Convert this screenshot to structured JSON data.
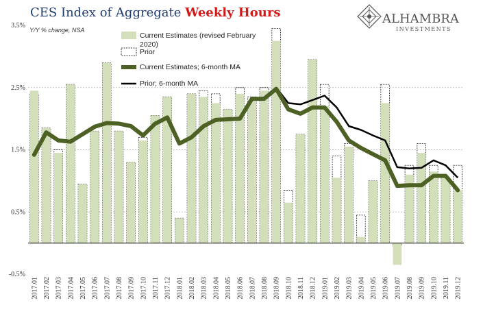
{
  "header": {
    "title_part1": "CES Index of Aggregate ",
    "title_part2": "Weekly Hours"
  },
  "brand": {
    "name": "ALHAMBRA",
    "tagline": "INVESTMENTS",
    "logo_icon": "alhambra-diamond-logo"
  },
  "colors": {
    "current_bar": "#d3dfbb",
    "prior_bar_border": "#333333",
    "ma_current": "#4d6125",
    "ma_prior": "#000000",
    "title_blue": "#1f3a6e",
    "title_red": "#d11a1a"
  },
  "chart_data": {
    "type": "bar",
    "ylabel": "Y/Y % change, NSA",
    "ylim": [
      -0.5,
      3.5
    ],
    "yticks": [
      "3.5%",
      "2.5%",
      "1.5%",
      "0.5%",
      "-0.5%"
    ],
    "ytick_values": [
      3.5,
      2.5,
      1.5,
      0.5,
      -0.5
    ],
    "grid": true,
    "legend_position": "top-left",
    "categories": [
      "2017.01",
      "2017.02",
      "2017.03",
      "2017.04",
      "2017.05",
      "2017.06",
      "2017.07",
      "2017.08",
      "2017.09",
      "2017.10",
      "2017.11",
      "2017.12",
      "2018.01",
      "2018.02",
      "2018.03",
      "2018.04",
      "2018.05",
      "2018.06",
      "2018.07",
      "2018.08",
      "2018.09",
      "2018.10",
      "2018.11",
      "2018.12",
      "2019.01",
      "2019.02",
      "2019.03",
      "2019.04",
      "2019.05",
      "2019.06",
      "2019.07",
      "2019.08",
      "2019.09",
      "2019.10",
      "2019.11",
      "2019.12"
    ],
    "series": [
      {
        "name": "Current Estimates (revised February 2020)",
        "kind": "bar",
        "values": [
          2.45,
          1.85,
          1.45,
          2.55,
          0.95,
          1.8,
          2.9,
          1.8,
          1.3,
          1.65,
          2.05,
          2.35,
          0.4,
          2.4,
          2.35,
          2.25,
          2.15,
          2.4,
          2.3,
          2.45,
          3.25,
          0.65,
          1.75,
          2.95,
          2.2,
          1.05,
          1.55,
          0.1,
          1.0,
          2.25,
          -0.35,
          1.1,
          1.45,
          1.15,
          1.05,
          0.85
        ]
      },
      {
        "name": "Prior",
        "kind": "bar-outline",
        "values": [
          2.4,
          1.85,
          1.5,
          2.55,
          0.95,
          1.8,
          2.9,
          1.8,
          1.3,
          1.7,
          2.05,
          2.35,
          0.4,
          2.4,
          2.45,
          2.4,
          2.15,
          2.5,
          2.35,
          2.5,
          3.45,
          0.85,
          1.75,
          2.95,
          2.55,
          1.4,
          1.6,
          0.45,
          1.0,
          2.55,
          -0.05,
          1.25,
          1.6,
          1.25,
          1.05,
          1.25
        ]
      },
      {
        "name": "Current Estimates; 6-month MA",
        "kind": "line",
        "values": [
          1.42,
          1.78,
          1.65,
          1.63,
          1.75,
          1.87,
          1.93,
          1.92,
          1.88,
          1.73,
          1.92,
          2.02,
          1.6,
          1.7,
          1.88,
          1.98,
          1.99,
          2.0,
          2.32,
          2.32,
          2.48,
          2.15,
          2.08,
          2.18,
          2.18,
          1.95,
          1.65,
          1.53,
          1.43,
          1.33,
          0.92,
          0.93,
          0.93,
          1.08,
          1.08,
          0.85
        ]
      },
      {
        "name": "Prior; 6-month MA",
        "kind": "line",
        "values": [
          null,
          null,
          null,
          null,
          null,
          null,
          null,
          null,
          null,
          null,
          null,
          null,
          null,
          null,
          null,
          null,
          null,
          null,
          null,
          null,
          2.5,
          2.25,
          2.23,
          2.3,
          2.37,
          2.18,
          1.88,
          1.82,
          1.73,
          1.65,
          1.22,
          1.2,
          1.21,
          1.33,
          1.25,
          1.05
        ]
      }
    ]
  }
}
